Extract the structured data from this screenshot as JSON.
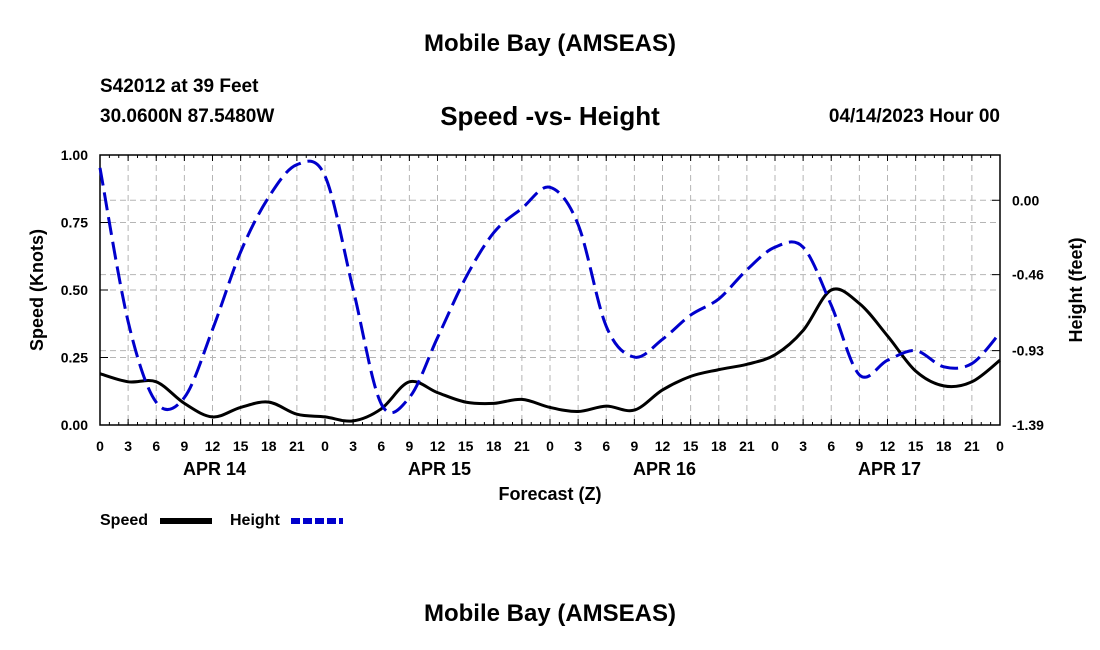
{
  "page_title": "Mobile Bay (AMSEAS)",
  "bottom_title": "Mobile Bay (AMSEAS)",
  "station": "S42012 at 39 Feet",
  "coordinates": "30.0600N  87.5480W",
  "chart_data": {
    "type": "line",
    "title": "Speed -vs- Height",
    "timestamp": "04/14/2023 Hour 00",
    "xlabel": "Forecast (Z)",
    "ylabel": "Speed (Knots)",
    "y2label": "Height (feet)",
    "x_range_hours": [
      0,
      96
    ],
    "ylim": [
      0,
      1.0
    ],
    "y2lim": [
      -1.39,
      0.28
    ],
    "grid": true,
    "x_tick_hours": [
      0,
      3,
      6,
      9,
      12,
      15,
      18,
      21,
      24,
      27,
      30,
      33,
      36,
      39,
      42,
      45,
      48,
      51,
      54,
      57,
      60,
      63,
      66,
      69,
      72,
      75,
      78,
      81,
      84,
      87,
      90,
      93,
      96
    ],
    "x_tick_labels": [
      "0",
      "3",
      "6",
      "9",
      "12",
      "15",
      "18",
      "21",
      "0",
      "3",
      "6",
      "9",
      "12",
      "15",
      "18",
      "21",
      "0",
      "3",
      "6",
      "9",
      "12",
      "15",
      "18",
      "21",
      "0",
      "3",
      "6",
      "9",
      "12",
      "15",
      "18",
      "21",
      "0"
    ],
    "y_ticks": [
      0,
      0.25,
      0.5,
      0.75,
      1.0
    ],
    "y_tick_labels": [
      "0.00",
      "0.25",
      "0.50",
      "0.75",
      "1.00"
    ],
    "y2_ticks": [
      0.0,
      -0.46,
      -0.93,
      -1.39
    ],
    "y2_tick_labels": [
      "0.00",
      "-0.46",
      "-0.93",
      "-1.39"
    ],
    "date_labels": [
      {
        "hour": 12,
        "label": "APR 14"
      },
      {
        "hour": 36,
        "label": "APR 15"
      },
      {
        "hour": 60,
        "label": "APR 16"
      },
      {
        "hour": 84,
        "label": "APR 17"
      }
    ],
    "legend": [
      {
        "name": "Speed",
        "color": "#000000",
        "style": "solid"
      },
      {
        "name": "Height",
        "color": "#0000cc",
        "style": "dashed"
      }
    ],
    "series": [
      {
        "name": "Speed",
        "axis": "left",
        "color": "#000000",
        "style": "solid",
        "points": [
          [
            0,
            0.19
          ],
          [
            3,
            0.16
          ],
          [
            6,
            0.16
          ],
          [
            9,
            0.08
          ],
          [
            12,
            0.03
          ],
          [
            15,
            0.065
          ],
          [
            18,
            0.085
          ],
          [
            21,
            0.04
          ],
          [
            24,
            0.03
          ],
          [
            27,
            0.015
          ],
          [
            30,
            0.06
          ],
          [
            33,
            0.16
          ],
          [
            36,
            0.12
          ],
          [
            39,
            0.085
          ],
          [
            42,
            0.08
          ],
          [
            45,
            0.095
          ],
          [
            48,
            0.065
          ],
          [
            51,
            0.05
          ],
          [
            54,
            0.07
          ],
          [
            57,
            0.055
          ],
          [
            60,
            0.13
          ],
          [
            63,
            0.18
          ],
          [
            66,
            0.205
          ],
          [
            69,
            0.225
          ],
          [
            72,
            0.26
          ],
          [
            75,
            0.35
          ],
          [
            78,
            0.5
          ],
          [
            81,
            0.45
          ],
          [
            84,
            0.33
          ],
          [
            87,
            0.2
          ],
          [
            90,
            0.145
          ],
          [
            93,
            0.16
          ],
          [
            96,
            0.24
          ]
        ]
      },
      {
        "name": "Height",
        "axis": "right",
        "color": "#0000cc",
        "style": "dashed",
        "points": [
          [
            0,
            0.2
          ],
          [
            3,
            -0.75
          ],
          [
            6,
            -1.25
          ],
          [
            9,
            -1.22
          ],
          [
            12,
            -0.8
          ],
          [
            15,
            -0.32
          ],
          [
            18,
            0.02
          ],
          [
            21,
            0.22
          ],
          [
            24,
            0.15
          ],
          [
            27,
            -0.55
          ],
          [
            30,
            -1.26
          ],
          [
            33,
            -1.22
          ],
          [
            36,
            -0.85
          ],
          [
            39,
            -0.48
          ],
          [
            42,
            -0.2
          ],
          [
            45,
            -0.05
          ],
          [
            48,
            0.08
          ],
          [
            51,
            -0.15
          ],
          [
            54,
            -0.78
          ],
          [
            57,
            -0.97
          ],
          [
            60,
            -0.86
          ],
          [
            63,
            -0.71
          ],
          [
            66,
            -0.61
          ],
          [
            69,
            -0.43
          ],
          [
            72,
            -0.29
          ],
          [
            75,
            -0.29
          ],
          [
            78,
            -0.65
          ],
          [
            81,
            -1.08
          ],
          [
            84,
            -0.99
          ],
          [
            87,
            -0.93
          ],
          [
            90,
            -1.03
          ],
          [
            93,
            -1.01
          ],
          [
            96,
            -0.82
          ]
        ]
      }
    ]
  }
}
